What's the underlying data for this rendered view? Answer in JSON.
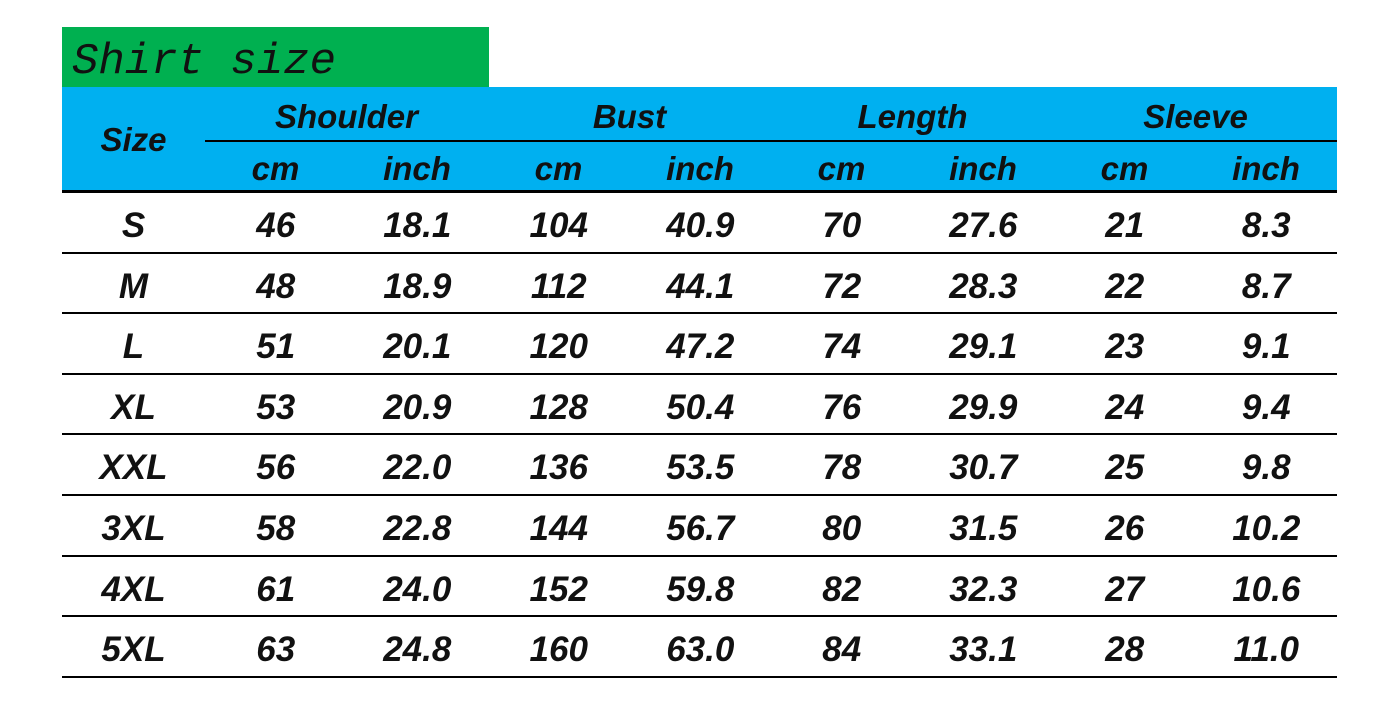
{
  "title": "Shirt size",
  "header": {
    "size_label": "Size",
    "groups": [
      {
        "label": "Shoulder",
        "units": [
          "cm",
          "inch"
        ]
      },
      {
        "label": "Bust",
        "units": [
          "cm",
          "inch"
        ]
      },
      {
        "label": "Length",
        "units": [
          "cm",
          "inch"
        ]
      },
      {
        "label": "Sleeve",
        "units": [
          "cm",
          "inch"
        ]
      }
    ]
  },
  "colors": {
    "title_bg": "#00b050",
    "header_bg": "#00b0f0"
  },
  "rows": [
    [
      "S",
      "46",
      "18.1",
      "104",
      "40.9",
      "70",
      "27.6",
      "21",
      "8.3"
    ],
    [
      "M",
      "48",
      "18.9",
      "112",
      "44.1",
      "72",
      "28.3",
      "22",
      "8.7"
    ],
    [
      "L",
      "51",
      "20.1",
      "120",
      "47.2",
      "74",
      "29.1",
      "23",
      "9.1"
    ],
    [
      "XL",
      "53",
      "20.9",
      "128",
      "50.4",
      "76",
      "29.9",
      "24",
      "9.4"
    ],
    [
      "XXL",
      "56",
      "22.0",
      "136",
      "53.5",
      "78",
      "30.7",
      "25",
      "9.8"
    ],
    [
      "3XL",
      "58",
      "22.8",
      "144",
      "56.7",
      "80",
      "31.5",
      "26",
      "10.2"
    ],
    [
      "4XL",
      "61",
      "24.0",
      "152",
      "59.8",
      "82",
      "32.3",
      "27",
      "10.6"
    ],
    [
      "5XL",
      "63",
      "24.8",
      "160",
      "63.0",
      "84",
      "33.1",
      "28",
      "11.0"
    ]
  ]
}
